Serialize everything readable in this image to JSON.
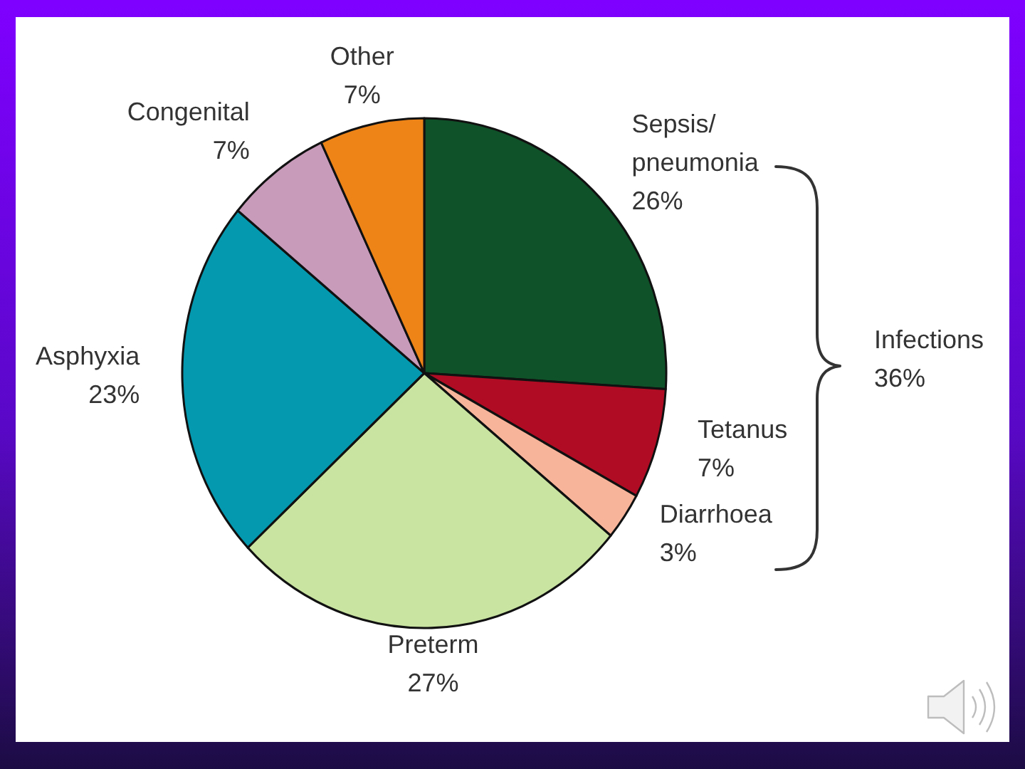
{
  "chart_data": {
    "type": "pie",
    "categories": [
      "Sepsis/\npneumonia",
      "Tetanus",
      "Diarrhoea",
      "Preterm",
      "Asphyxia",
      "Congenital",
      "Other"
    ],
    "values": [
      26,
      7,
      3,
      27,
      23,
      7,
      7
    ],
    "colors": [
      "#0f5229",
      "#b00c23",
      "#f7b49a",
      "#c8e4a0",
      "#0599b0",
      "#c89bbb",
      "#ee8418"
    ],
    "value_labels": [
      "26%",
      "7%",
      "3%",
      "27%",
      "23%",
      "7%",
      "7%"
    ],
    "annotations": [
      "Infections\n36%"
    ]
  }
}
